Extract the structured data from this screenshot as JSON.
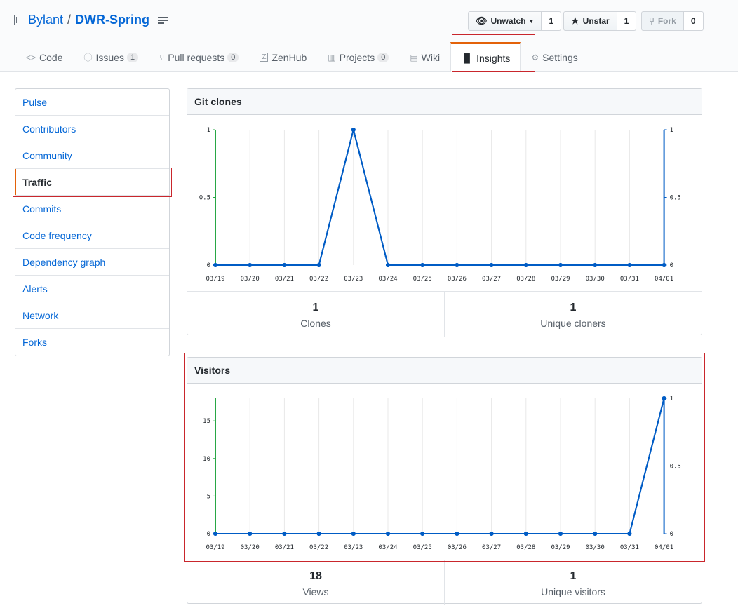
{
  "repo": {
    "owner": "Bylant",
    "separator": "/",
    "name": "DWR-Spring"
  },
  "actions": [
    {
      "label": "Unwatch",
      "icon": "eye-icon",
      "count": "1"
    },
    {
      "label": "Unstar",
      "icon": "star-icon",
      "count": "1"
    },
    {
      "label": "Fork",
      "icon": "fork-icon",
      "count": "0"
    }
  ],
  "tabs": [
    {
      "label": "Code",
      "icon": "code-icon"
    },
    {
      "label": "Issues",
      "icon": "issue-icon",
      "badge": "1"
    },
    {
      "label": "Pull requests",
      "icon": "pull-request-icon",
      "badge": "0"
    },
    {
      "label": "ZenHub",
      "icon": "zenhub-icon"
    },
    {
      "label": "Projects",
      "icon": "project-icon",
      "badge": "0"
    },
    {
      "label": "Wiki",
      "icon": "book-icon"
    },
    {
      "label": "Insights",
      "icon": "graph-icon",
      "selected": true
    },
    {
      "label": "Settings",
      "icon": "gear-icon"
    }
  ],
  "sidebar": [
    {
      "label": "Pulse"
    },
    {
      "label": "Contributors"
    },
    {
      "label": "Community"
    },
    {
      "label": "Traffic",
      "selected": true
    },
    {
      "label": "Commits"
    },
    {
      "label": "Code frequency"
    },
    {
      "label": "Dependency graph"
    },
    {
      "label": "Alerts"
    },
    {
      "label": "Network"
    },
    {
      "label": "Forks"
    }
  ],
  "clones": {
    "title": "Git clones",
    "stats": [
      {
        "value": "1",
        "label": "Clones"
      },
      {
        "value": "1",
        "label": "Unique cloners"
      }
    ]
  },
  "visitors": {
    "title": "Visitors",
    "stats": [
      {
        "value": "18",
        "label": "Views"
      },
      {
        "value": "1",
        "label": "Unique visitors"
      }
    ]
  },
  "colors": {
    "series": "#005cc5",
    "left_axis": "#28a745",
    "accent": "#e36209",
    "highlight": "#c9262c"
  },
  "chart_data": [
    {
      "type": "line",
      "x": [
        "03/19",
        "03/20",
        "03/21",
        "03/22",
        "03/23",
        "03/24",
        "03/25",
        "03/26",
        "03/27",
        "03/28",
        "03/29",
        "03/30",
        "03/31",
        "04/01"
      ],
      "series": [
        {
          "name": "",
          "values": [
            0,
            0,
            0,
            0,
            1,
            0,
            0,
            0,
            0,
            0,
            0,
            0,
            0,
            0
          ],
          "axis": "left"
        },
        {
          "name": "",
          "values": [
            0,
            0,
            0,
            0,
            1,
            0,
            0,
            0,
            0,
            0,
            0,
            0,
            0,
            0
          ],
          "axis": "right"
        }
      ],
      "ylim_left": [
        0,
        1
      ],
      "yticks_left": [
        "0",
        "0.5",
        "1"
      ],
      "ylim_right": [
        0,
        1
      ],
      "yticks_right": [
        "0",
        "0.5",
        "1"
      ],
      "grid": "vertical"
    },
    {
      "type": "line",
      "x": [
        "03/19",
        "03/20",
        "03/21",
        "03/22",
        "03/23",
        "03/24",
        "03/25",
        "03/26",
        "03/27",
        "03/28",
        "03/29",
        "03/30",
        "03/31",
        "04/01"
      ],
      "series": [
        {
          "name": "",
          "values": [
            0,
            0,
            0,
            0,
            0,
            0,
            0,
            0,
            0,
            0,
            0,
            0,
            0,
            18
          ],
          "axis": "left"
        },
        {
          "name": "",
          "values": [
            0,
            0,
            0,
            0,
            0,
            0,
            0,
            0,
            0,
            0,
            0,
            0,
            0,
            1
          ],
          "axis": "right"
        }
      ],
      "ylim_left": [
        0,
        18
      ],
      "yticks_left": [
        "0",
        "5",
        "10",
        "15"
      ],
      "ylim_right": [
        0,
        1
      ],
      "yticks_right": [
        "0",
        "0.5",
        "1"
      ],
      "grid": "vertical"
    }
  ]
}
